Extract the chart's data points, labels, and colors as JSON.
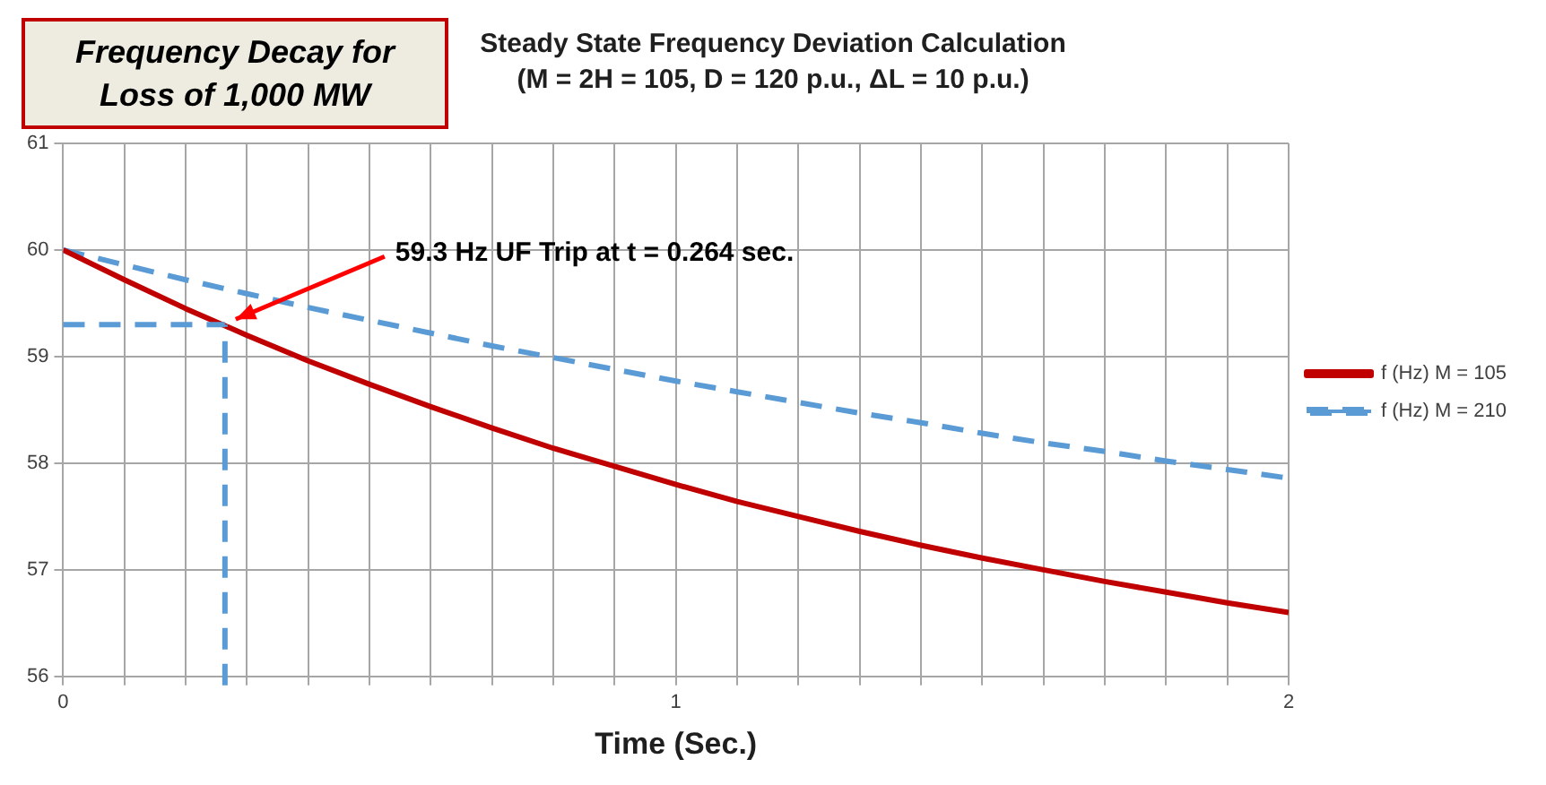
{
  "chart_data": {
    "type": "line",
    "title": "Steady State Frequency Deviation Calculation",
    "subtitle": "(M = 2H = 105, D = 120 p.u., ΔL = 10 p.u.)",
    "xlabel": "Time (Sec.)",
    "annotations": [
      "Frequency Decay for Loss of 1,000 MW",
      "59.3 Hz UF Trip at t = 0.264 sec."
    ],
    "x": [
      0,
      0.1,
      0.2,
      0.3,
      0.4,
      0.5,
      0.6,
      0.7,
      0.8,
      0.9,
      1.0,
      1.1,
      1.2,
      1.3,
      1.4,
      1.5,
      1.6,
      1.7,
      1.8,
      1.9,
      2.0
    ],
    "series": [
      {
        "name": "f (Hz) M = 105",
        "color": "#c00000",
        "line_style": "solid",
        "values": [
          60,
          59.72,
          59.45,
          59.2,
          58.96,
          58.74,
          58.53,
          58.33,
          58.14,
          57.97,
          57.8,
          57.64,
          57.5,
          57.36,
          57.23,
          57.11,
          57.0,
          56.89,
          56.79,
          56.69,
          56.6
        ]
      },
      {
        "name": "f (Hz) M = 210",
        "color": "#5b9bd5",
        "line_style": "dashed",
        "values": [
          60,
          59.86,
          59.72,
          59.59,
          59.46,
          59.34,
          59.22,
          59.1,
          58.99,
          58.88,
          58.77,
          58.67,
          58.57,
          58.47,
          58.38,
          58.28,
          58.19,
          58.11,
          58.02,
          57.94,
          57.86
        ]
      }
    ],
    "ref_lines": [
      {
        "axis": "y",
        "value": 59.3,
        "color": "#5b9bd5",
        "line_style": "dashed"
      },
      {
        "axis": "x",
        "value": 0.264,
        "color": "#5b9bd5",
        "line_style": "dashed"
      }
    ],
    "xlim": [
      0,
      2
    ],
    "xticks": [
      0,
      {
        "value": 0.1,
        "label": null
      },
      {
        "value": 0.2,
        "label": null
      },
      {
        "value": 0.3,
        "label": null
      },
      {
        "value": 0.4,
        "label": null
      },
      {
        "value": 0.5,
        "label": null
      },
      {
        "value": 0.6,
        "label": null
      },
      {
        "value": 0.7,
        "label": null
      },
      {
        "value": 0.8,
        "label": null
      },
      {
        "value": 0.9,
        "label": null
      },
      1,
      {
        "value": 1.1,
        "label": null
      },
      {
        "value": 1.2,
        "label": null
      },
      {
        "value": 1.3,
        "label": null
      },
      {
        "value": 1.4,
        "label": null
      },
      {
        "value": 1.5,
        "label": null
      },
      {
        "value": 1.6,
        "label": null
      },
      {
        "value": 1.7,
        "label": null
      },
      {
        "value": 1.8,
        "label": null
      },
      {
        "value": 1.9,
        "label": null
      },
      2
    ],
    "ylim": [
      56,
      61
    ],
    "yticks": [
      56,
      57,
      58,
      59,
      60,
      61
    ],
    "grid": true,
    "legend": "right",
    "marker": "none"
  }
}
